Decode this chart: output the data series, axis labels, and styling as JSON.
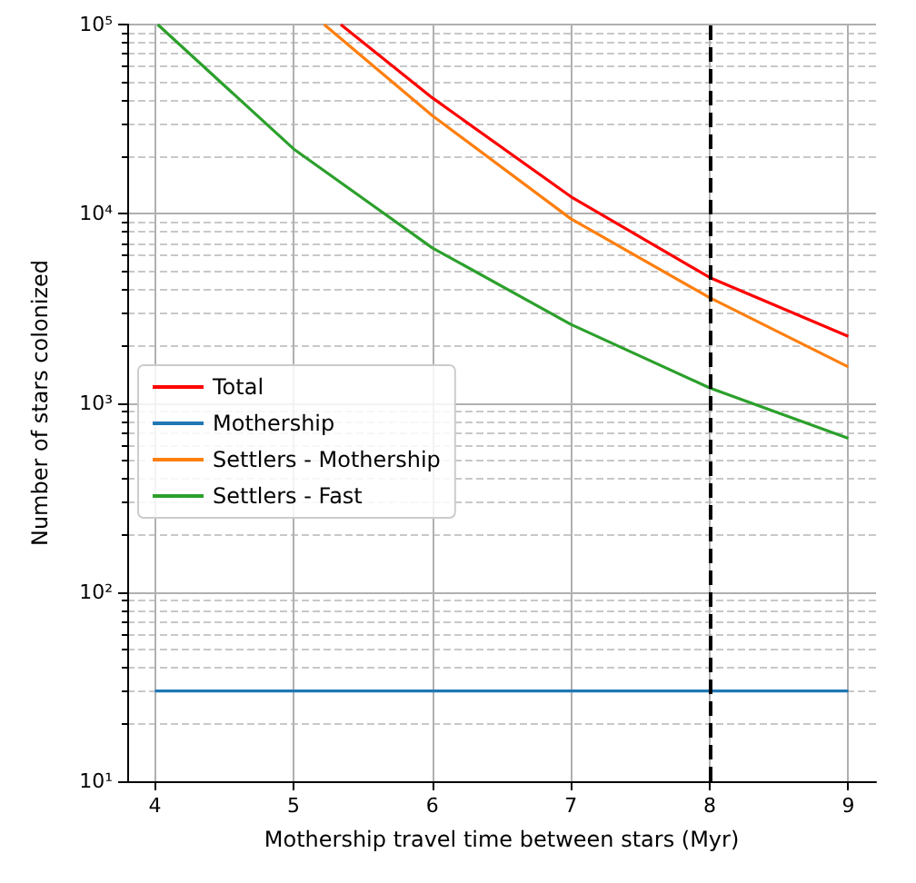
{
  "chart_data": {
    "type": "line",
    "xlabel": "Mothership travel time between stars (Myr)",
    "ylabel": "Number of stars colonized",
    "xlim": [
      3.8,
      9.2
    ],
    "xticks": [
      4,
      5,
      6,
      7,
      8,
      9
    ],
    "ylim": [
      10,
      100000
    ],
    "log": "y",
    "yticks": [
      {
        "value": 10,
        "label": "10¹"
      },
      {
        "value": 100,
        "label": "10²"
      },
      {
        "value": 1000,
        "label": "10³"
      },
      {
        "value": 10000,
        "label": "10⁴"
      },
      {
        "value": 100000,
        "label": "10⁵"
      }
    ],
    "series": [
      {
        "name": "Total",
        "color": "#ff0000",
        "x": [
          5.34,
          6,
          7,
          8,
          9
        ],
        "values": [
          100000,
          41000,
          12300,
          4600,
          2250
        ]
      },
      {
        "name": "Mothership",
        "color": "#1f77b4",
        "x": [
          4,
          5,
          6,
          7,
          8,
          9
        ],
        "values": [
          30,
          30,
          30,
          30,
          30,
          30
        ]
      },
      {
        "name": "Settlers - Mothership",
        "color": "#ff7f0e",
        "x": [
          5.22,
          6,
          7,
          8,
          9
        ],
        "values": [
          100000,
          33000,
          9400,
          3600,
          1550
        ]
      },
      {
        "name": "Settlers - Fast",
        "color": "#2ca02c",
        "x": [
          4.02,
          5,
          6,
          7,
          8,
          9
        ],
        "values": [
          100000,
          22000,
          6600,
          2600,
          1200,
          650
        ]
      }
    ],
    "ref_lines": [
      {
        "axis": "x",
        "value": 8,
        "color": "#000000",
        "line_style": "dashed"
      }
    ],
    "grid": true,
    "legend": "left",
    "marker": "none",
    "line_style": "solid"
  }
}
